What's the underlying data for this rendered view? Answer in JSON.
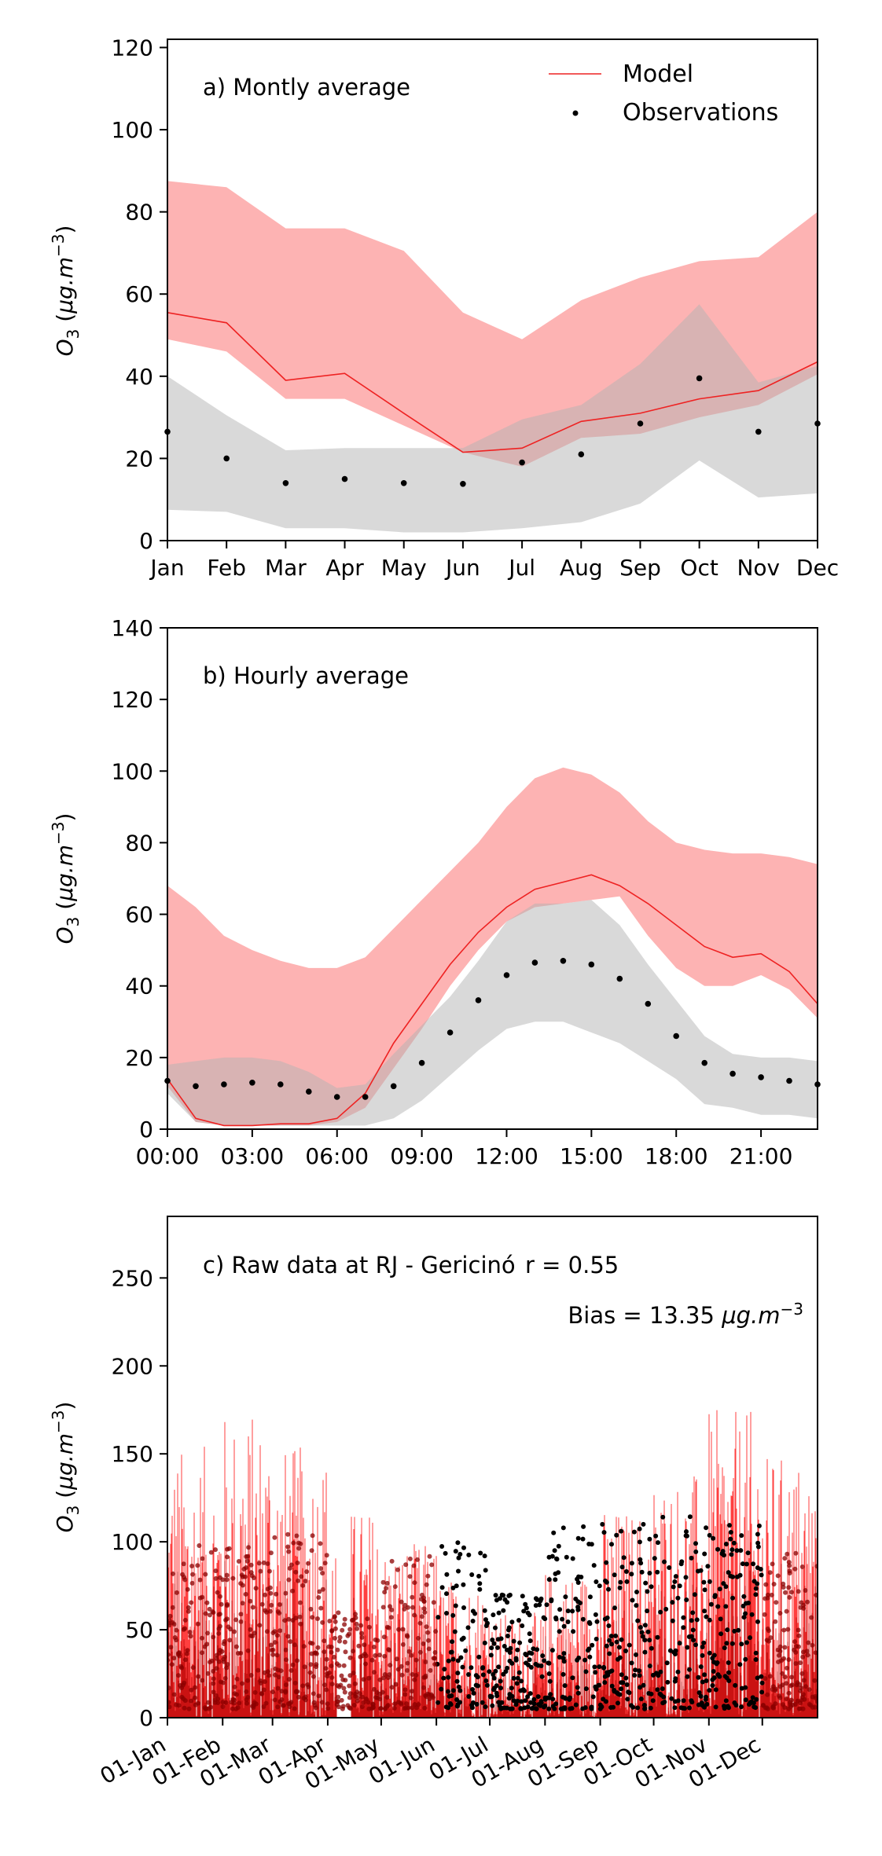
{
  "chart_data": [
    {
      "type": "line",
      "panel_label": "a) Montly average",
      "ylabel": "O_3 (μg.m^-3)",
      "ylabel_unit": "μg.m",
      "ylabel_exp": "−3",
      "ylim": [
        0,
        122
      ],
      "yticks": [
        0,
        20,
        40,
        60,
        80,
        100,
        120
      ],
      "categories": [
        "Jan",
        "Feb",
        "Mar",
        "Apr",
        "May",
        "Jun",
        "Jul",
        "Aug",
        "Sep",
        "Oct",
        "Nov",
        "Dec"
      ],
      "legend": {
        "position": "top-right",
        "model": "Model",
        "observations": "Observations"
      },
      "series": [
        {
          "name": "Model",
          "values": [
            55.5,
            53,
            39,
            40.7,
            31,
            21.5,
            22.5,
            29,
            31,
            34.5,
            36.5,
            43.5
          ],
          "band_upper": [
            87.5,
            86,
            76,
            76,
            70.5,
            55.5,
            49,
            58.5,
            64,
            68,
            69,
            80
          ],
          "band_lower": [
            49,
            46,
            34.5,
            34.5,
            28,
            21.5,
            18,
            25,
            26,
            30,
            33,
            40.5
          ]
        },
        {
          "name": "Observations",
          "values": [
            26.5,
            20,
            14,
            15,
            14,
            13.8,
            19,
            21,
            28.5,
            39.5,
            26.5,
            28.5
          ],
          "band_upper": [
            40,
            30.5,
            22,
            22.5,
            22.5,
            22.5,
            29.5,
            33,
            43,
            57.5,
            38.5,
            42.5
          ],
          "band_lower": [
            7.5,
            7,
            3,
            3,
            2,
            2,
            3,
            4.5,
            9,
            19.5,
            10.5,
            11.5
          ]
        }
      ]
    },
    {
      "type": "line",
      "panel_label": "b) Hourly average",
      "ylabel": "O_3 (μg.m^-3)",
      "ylabel_unit": "μg.m",
      "ylabel_exp": "−3",
      "ylim": [
        0,
        140
      ],
      "yticks": [
        0,
        20,
        40,
        60,
        80,
        100,
        120,
        140
      ],
      "x": [
        0,
        1,
        2,
        3,
        4,
        5,
        6,
        7,
        8,
        9,
        10,
        11,
        12,
        13,
        14,
        15,
        16,
        17,
        18,
        19,
        20,
        21,
        22,
        23
      ],
      "xticks": [
        "00:00",
        "03:00",
        "06:00",
        "09:00",
        "12:00",
        "15:00",
        "18:00",
        "21:00"
      ],
      "series": [
        {
          "name": "Model",
          "values": [
            14,
            3,
            1,
            1,
            1.5,
            1.5,
            3,
            10,
            24,
            35,
            46,
            55,
            62,
            67,
            69,
            71,
            68,
            63,
            57,
            51,
            48,
            49,
            44,
            35
          ],
          "band_upper": [
            68,
            62,
            54,
            50,
            47,
            45,
            45,
            48,
            56,
            64,
            72,
            80,
            90,
            98,
            101,
            99,
            94,
            86,
            80,
            78,
            77,
            77,
            76,
            74
          ],
          "band_lower": [
            12,
            2,
            1,
            1,
            1,
            1,
            2,
            6,
            17,
            28,
            40,
            50,
            58,
            62,
            63,
            64,
            65,
            54,
            45,
            40,
            40,
            43,
            39,
            31
          ]
        },
        {
          "name": "Observations",
          "values": [
            13.5,
            12,
            12.5,
            13,
            12.5,
            10.5,
            9,
            9,
            12,
            18.5,
            27,
            36,
            43,
            46.5,
            47,
            46,
            42,
            35,
            26,
            18.5,
            15.5,
            14.5,
            13.5,
            12.5
          ],
          "band_upper": [
            18,
            19,
            20,
            20,
            19,
            16,
            11.5,
            12.5,
            21,
            29,
            37,
            47,
            58,
            63,
            63,
            64,
            57,
            46,
            36,
            26,
            21,
            20,
            20,
            19
          ],
          "band_lower": [
            10,
            2,
            1,
            1,
            1,
            1,
            1,
            1,
            3,
            8,
            15,
            22,
            28,
            30,
            30,
            27,
            24,
            19,
            14,
            7,
            6,
            4,
            4,
            3
          ]
        }
      ]
    },
    {
      "type": "line",
      "panel_label": "c) Raw data at RJ - Gericinó",
      "stat_r": "r = 0.55",
      "stat_bias": "Bias = 13.35 μg.m−3",
      "stat_bias_prefix": "Bias = 13.35",
      "stat_bias_unit": "μg.m",
      "stat_bias_exp": "−3",
      "ylabel": "O_3 (μg.m^-3)",
      "ylabel_unit": "μg.m",
      "ylabel_exp": "−3",
      "ylim": [
        0,
        285
      ],
      "yticks": [
        0,
        50,
        100,
        150,
        200,
        250
      ],
      "x_range_days": [
        0,
        365
      ],
      "xticks": [
        "01-Jan",
        "01-Feb",
        "01-Mar",
        "01-Apr",
        "01-May",
        "01-Jun",
        "01-Jul",
        "01-Aug",
        "01-Sep",
        "01-Oct",
        "01-Nov",
        "01-Dec"
      ],
      "monthly_model_peak": [
        155,
        175,
        155,
        120,
        100,
        80,
        60,
        85,
        120,
        140,
        175,
        150
      ],
      "monthly_obs_peak": [
        100,
        100,
        105,
        60,
        95,
        100,
        70,
        110,
        110,
        115,
        110,
        95
      ],
      "series": [
        {
          "name": "Model"
        },
        {
          "name": "Observations"
        }
      ]
    }
  ],
  "colors": {
    "model": "#ee2222",
    "model_band": "#fdb3b3",
    "obs": "#000000",
    "obs_band": "#d9d9d9",
    "raw_model": "#ff2a2a",
    "raw_model_dark": "#b30000"
  }
}
